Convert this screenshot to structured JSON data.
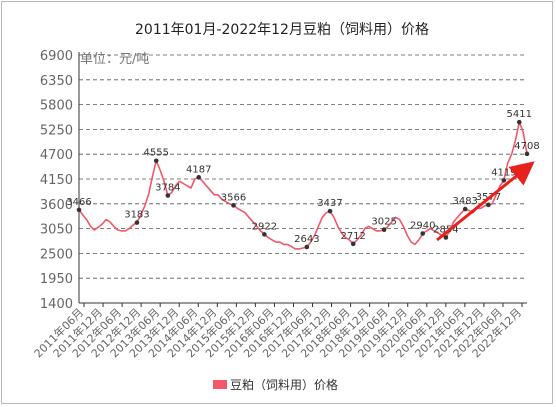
{
  "chart_data": {
    "type": "line",
    "title": "2011年01月-2022年12月豆粕（饲料用）价格",
    "unit_label": "单位：元/吨",
    "ylim": [
      1400,
      6900
    ],
    "yticks": [
      1400,
      1950,
      2500,
      3050,
      3600,
      4150,
      4700,
      5250,
      5800,
      6350,
      6900
    ],
    "grid": true,
    "legend_position": "bottom",
    "colors": {
      "series": "#f3586a",
      "marker": "#333333",
      "arrow": "#e8211c",
      "axis": "#333333",
      "grid": "#555555"
    },
    "xticks": [
      "2011年06月",
      "2011年12月",
      "2012年06月",
      "2012年12月",
      "2013年06月",
      "2013年12月",
      "2014年06月",
      "2014年12月",
      "2015年06月",
      "2015年12月",
      "2016年06月",
      "2016年12月",
      "2017年06月",
      "2017年12月",
      "2018年06月",
      "2018年12月",
      "2019年06月",
      "2019年12月",
      "2020年06月",
      "2020年12月",
      "2021年06月",
      "2021年12月",
      "2022年06月",
      "2022年12月"
    ],
    "series": [
      {
        "name": "豆粕（饲料用）",
        "values": [
          3466,
          3350,
          3250,
          3100,
          3020,
          3080,
          3150,
          3250,
          3200,
          3100,
          3020,
          3000,
          3000,
          3050,
          3130,
          3183,
          3350,
          3550,
          3800,
          4200,
          4555,
          4350,
          4100,
          3784,
          3850,
          4000,
          4100,
          4050,
          4000,
          3950,
          4150,
          4187,
          4100,
          4000,
          3900,
          3800,
          3800,
          3700,
          3650,
          3600,
          3566,
          3500,
          3450,
          3400,
          3300,
          3200,
          3100,
          3000,
          2922,
          2850,
          2800,
          2750,
          2750,
          2700,
          2700,
          2650,
          2600,
          2600,
          2620,
          2643,
          2750,
          2900,
          3100,
          3300,
          3400,
          3437,
          3300,
          3100,
          2950,
          2850,
          2800,
          2712,
          2800,
          2900,
          3050,
          3100,
          3050,
          3000,
          3000,
          3025,
          3100,
          3200,
          3300,
          3250,
          3100,
          2900,
          2750,
          2700,
          2800,
          2940,
          3000,
          3050,
          3000,
          2950,
          2900,
          2854,
          3000,
          3200,
          3300,
          3400,
          3483,
          3450,
          3400,
          3500,
          3500,
          3550,
          3577,
          3600,
          3800,
          4000,
          4119,
          4500,
          4700,
          5000,
          5411,
          5200,
          4708
        ],
        "labels": [
          {
            "i": 0,
            "text": "3466"
          },
          {
            "i": 15,
            "text": "3183"
          },
          {
            "i": 20,
            "text": "4555"
          },
          {
            "i": 23,
            "text": "3784"
          },
          {
            "i": 31,
            "text": "4187"
          },
          {
            "i": 40,
            "text": "3566"
          },
          {
            "i": 48,
            "text": "2922"
          },
          {
            "i": 59,
            "text": "2643"
          },
          {
            "i": 65,
            "text": "3437"
          },
          {
            "i": 71,
            "text": "2712"
          },
          {
            "i": 79,
            "text": "3025"
          },
          {
            "i": 89,
            "text": "2940"
          },
          {
            "i": 95,
            "text": "2854"
          },
          {
            "i": 100,
            "text": "3483"
          },
          {
            "i": 106,
            "text": "3577"
          },
          {
            "i": 110,
            "text": "4119"
          },
          {
            "i": 114,
            "text": "5411"
          },
          {
            "i": 116,
            "text": "4708"
          }
        ]
      }
    ]
  },
  "legend": {
    "label": "豆粕（饲料用）价格"
  }
}
